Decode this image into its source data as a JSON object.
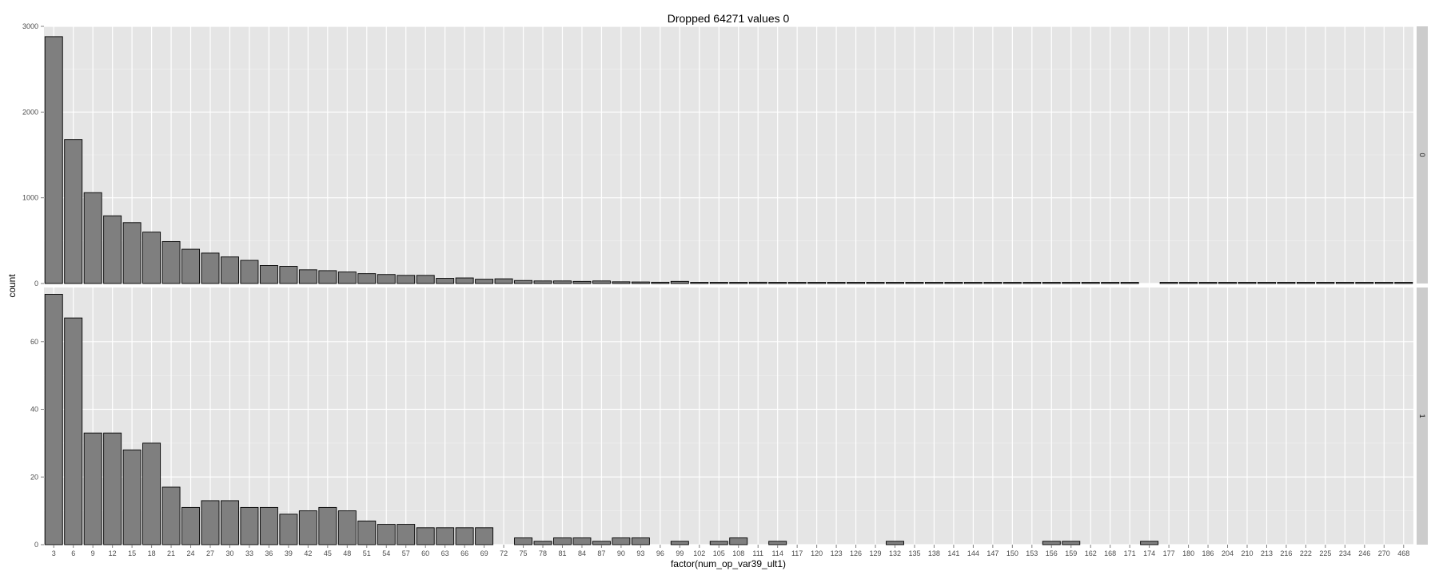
{
  "chart_data": {
    "type": "bar",
    "title": "Dropped 64271 values 0",
    "xlabel": "factor(num_op_var39_ult1)",
    "ylabel": "count",
    "grid": true,
    "facet_layout": "rows",
    "categories": [
      "3",
      "6",
      "9",
      "12",
      "15",
      "18",
      "21",
      "24",
      "27",
      "30",
      "33",
      "36",
      "39",
      "42",
      "45",
      "48",
      "51",
      "54",
      "57",
      "60",
      "63",
      "66",
      "69",
      "72",
      "75",
      "78",
      "81",
      "84",
      "87",
      "90",
      "93",
      "96",
      "99",
      "102",
      "105",
      "108",
      "111",
      "114",
      "117",
      "120",
      "123",
      "126",
      "129",
      "132",
      "135",
      "138",
      "141",
      "144",
      "147",
      "150",
      "153",
      "156",
      "159",
      "162",
      "168",
      "171",
      "174",
      "177",
      "180",
      "186",
      "204",
      "210",
      "213",
      "216",
      "222",
      "225",
      "234",
      "246",
      "270",
      "468"
    ],
    "panels": [
      {
        "strip_label": "0",
        "ylim": [
          0,
          3000
        ],
        "yticks": [
          0,
          1000,
          2000,
          3000
        ],
        "values": [
          2880,
          1680,
          1060,
          790,
          710,
          600,
          490,
          400,
          355,
          310,
          270,
          210,
          200,
          160,
          150,
          135,
          115,
          105,
          95,
          95,
          60,
          65,
          50,
          55,
          35,
          30,
          30,
          25,
          30,
          20,
          18,
          15,
          25,
          12,
          10,
          12,
          15,
          12,
          10,
          8,
          8,
          7,
          6,
          6,
          7,
          7,
          6,
          6,
          5,
          5,
          5,
          5,
          5,
          5,
          5,
          5,
          null,
          5,
          4,
          4,
          4,
          4,
          4,
          4,
          4,
          4,
          4,
          4,
          4,
          4
        ]
      },
      {
        "strip_label": "1",
        "ylim": [
          0,
          76
        ],
        "yticks": [
          0,
          20,
          40,
          60
        ],
        "values": [
          74,
          67,
          33,
          33,
          28,
          30,
          17,
          11,
          13,
          13,
          11,
          11,
          9,
          10,
          11,
          10,
          7,
          6,
          6,
          5,
          5,
          5,
          5,
          null,
          2,
          1,
          2,
          2,
          1,
          2,
          2,
          null,
          1,
          null,
          1,
          2,
          null,
          1,
          null,
          null,
          null,
          null,
          null,
          1,
          null,
          null,
          null,
          null,
          null,
          null,
          null,
          1,
          1,
          null,
          null,
          null,
          1,
          null,
          null,
          null,
          null,
          null,
          null,
          null,
          null,
          null,
          null,
          null,
          null,
          null
        ]
      }
    ]
  }
}
